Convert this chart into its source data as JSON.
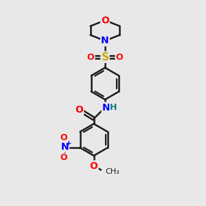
{
  "bg_color": "#e8e8e8",
  "bond_color": "#1a1a1a",
  "bond_width": 1.8,
  "atom_colors": {
    "O": "#ff0000",
    "N": "#0000ff",
    "S": "#ccaa00",
    "C": "#1a1a1a",
    "H": "#008080"
  },
  "font_size": 10,
  "fig_size": [
    3.0,
    3.0
  ],
  "dpi": 100,
  "xlim": [
    0,
    10
  ],
  "ylim": [
    0,
    10
  ]
}
